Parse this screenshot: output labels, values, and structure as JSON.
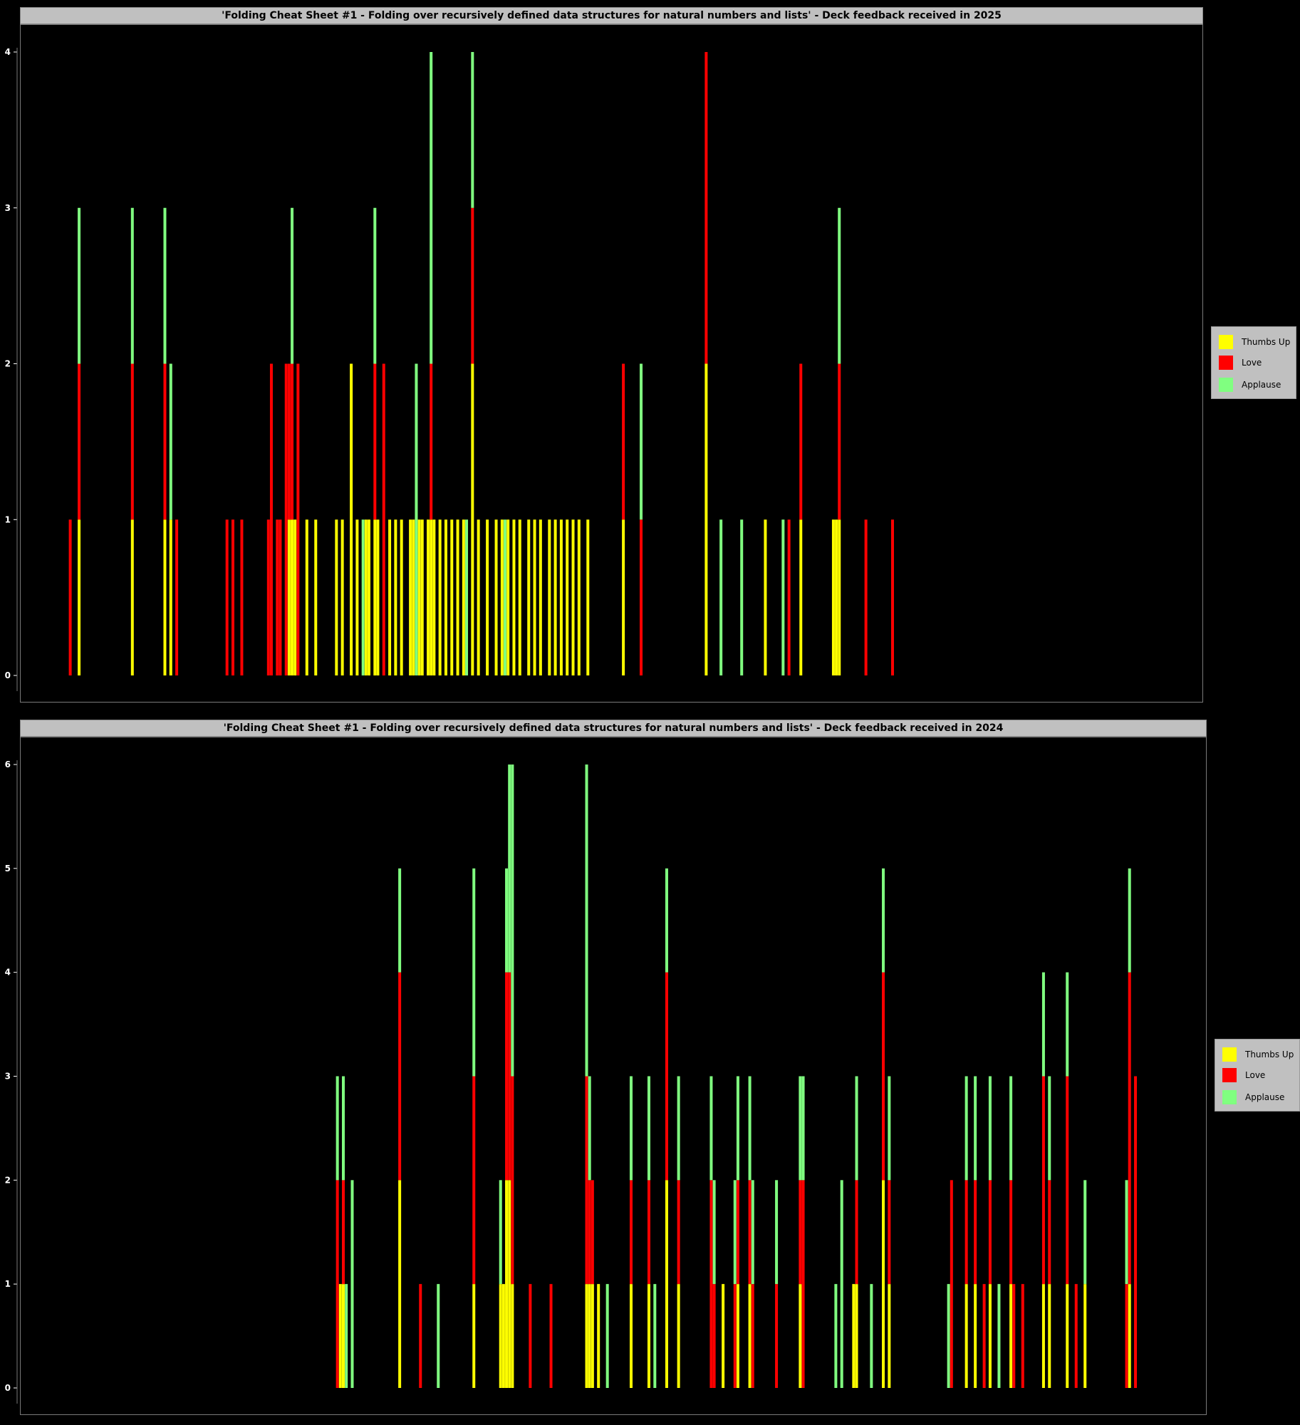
{
  "colors": {
    "thumbs_up": "#ffff00",
    "love": "#ff0000",
    "applause": "#80ff80",
    "background": "#000000",
    "panel_bg": "#c0c0c0"
  },
  "legend": {
    "items": [
      "Thumbs Up",
      "Love",
      "Applause"
    ]
  },
  "chart_data": [
    {
      "type": "bar",
      "stacked": true,
      "title": "'Folding Cheat Sheet #1 - Folding over recursively defined data structures for natural numbers and lists' - Deck feedback received in 2025",
      "xlabel": "",
      "ylabel": "",
      "ylim": [
        0,
        4
      ],
      "yticks": [
        0,
        1,
        2,
        3,
        4
      ],
      "x_count": 400,
      "legend_position": "right",
      "series_names": [
        "Thumbs Up",
        "Love",
        "Applause"
      ],
      "bars": [
        {
          "x": 17,
          "tu": 0,
          "love": 1,
          "app": 0
        },
        {
          "x": 20,
          "tu": 1,
          "love": 1,
          "app": 1
        },
        {
          "x": 38,
          "tu": 1,
          "love": 1,
          "app": 1
        },
        {
          "x": 49,
          "tu": 1,
          "love": 1,
          "app": 1
        },
        {
          "x": 51,
          "tu": 1,
          "love": 0,
          "app": 1
        },
        {
          "x": 53,
          "tu": 0,
          "love": 1,
          "app": 0
        },
        {
          "x": 70,
          "tu": 0,
          "love": 1,
          "app": 0
        },
        {
          "x": 72,
          "tu": 0,
          "love": 1,
          "app": 0
        },
        {
          "x": 75,
          "tu": 0,
          "love": 1,
          "app": 0
        },
        {
          "x": 84,
          "tu": 0,
          "love": 1,
          "app": 0
        },
        {
          "x": 85,
          "tu": 0,
          "love": 2,
          "app": 0
        },
        {
          "x": 87,
          "tu": 0,
          "love": 1,
          "app": 0
        },
        {
          "x": 88,
          "tu": 0,
          "love": 1,
          "app": 0
        },
        {
          "x": 90,
          "tu": 0,
          "love": 2,
          "app": 0
        },
        {
          "x": 91,
          "tu": 1,
          "love": 1,
          "app": 0
        },
        {
          "x": 92,
          "tu": 1,
          "love": 1,
          "app": 1
        },
        {
          "x": 93,
          "tu": 1,
          "love": 0,
          "app": 0
        },
        {
          "x": 94,
          "tu": 0,
          "love": 2,
          "app": 0
        },
        {
          "x": 97,
          "tu": 1,
          "love": 0,
          "app": 0
        },
        {
          "x": 100,
          "tu": 1,
          "love": 0,
          "app": 0
        },
        {
          "x": 107,
          "tu": 1,
          "love": 0,
          "app": 0
        },
        {
          "x": 109,
          "tu": 1,
          "love": 0,
          "app": 0
        },
        {
          "x": 112,
          "tu": 2,
          "love": 0,
          "app": 0
        },
        {
          "x": 114,
          "tu": 1,
          "love": 0,
          "app": 0
        },
        {
          "x": 116,
          "tu": 0,
          "love": 0,
          "app": 1
        },
        {
          "x": 117,
          "tu": 1,
          "love": 0,
          "app": 0
        },
        {
          "x": 118,
          "tu": 1,
          "love": 0,
          "app": 0
        },
        {
          "x": 120,
          "tu": 1,
          "love": 1,
          "app": 1
        },
        {
          "x": 121,
          "tu": 1,
          "love": 0,
          "app": 0
        },
        {
          "x": 123,
          "tu": 0,
          "love": 2,
          "app": 0
        },
        {
          "x": 125,
          "tu": 1,
          "love": 0,
          "app": 0
        },
        {
          "x": 127,
          "tu": 1,
          "love": 0,
          "app": 0
        },
        {
          "x": 129,
          "tu": 1,
          "love": 0,
          "app": 0
        },
        {
          "x": 132,
          "tu": 1,
          "love": 0,
          "app": 0
        },
        {
          "x": 133,
          "tu": 1,
          "love": 0,
          "app": 0
        },
        {
          "x": 134,
          "tu": 0,
          "love": 0,
          "app": 2
        },
        {
          "x": 135,
          "tu": 1,
          "love": 0,
          "app": 0
        },
        {
          "x": 136,
          "tu": 1,
          "love": 0,
          "app": 0
        },
        {
          "x": 138,
          "tu": 1,
          "love": 0,
          "app": 0
        },
        {
          "x": 139,
          "tu": 1,
          "love": 1,
          "app": 2
        },
        {
          "x": 140,
          "tu": 1,
          "love": 0,
          "app": 0
        },
        {
          "x": 142,
          "tu": 1,
          "love": 0,
          "app": 0
        },
        {
          "x": 144,
          "tu": 1,
          "love": 0,
          "app": 0
        },
        {
          "x": 146,
          "tu": 1,
          "love": 0,
          "app": 0
        },
        {
          "x": 148,
          "tu": 1,
          "love": 0,
          "app": 0
        },
        {
          "x": 150,
          "tu": 1,
          "love": 0,
          "app": 0
        },
        {
          "x": 151,
          "tu": 0,
          "love": 0,
          "app": 1
        },
        {
          "x": 153,
          "tu": 2,
          "love": 1,
          "app": 1
        },
        {
          "x": 155,
          "tu": 1,
          "love": 0,
          "app": 0
        },
        {
          "x": 158,
          "tu": 1,
          "love": 0,
          "app": 0
        },
        {
          "x": 161,
          "tu": 1,
          "love": 0,
          "app": 0
        },
        {
          "x": 163,
          "tu": 1,
          "love": 0,
          "app": 0
        },
        {
          "x": 164,
          "tu": 0,
          "love": 0,
          "app": 1
        },
        {
          "x": 165,
          "tu": 1,
          "love": 0,
          "app": 0
        },
        {
          "x": 167,
          "tu": 1,
          "love": 0,
          "app": 0
        },
        {
          "x": 169,
          "tu": 1,
          "love": 0,
          "app": 0
        },
        {
          "x": 172,
          "tu": 1,
          "love": 0,
          "app": 0
        },
        {
          "x": 174,
          "tu": 1,
          "love": 0,
          "app": 0
        },
        {
          "x": 176,
          "tu": 1,
          "love": 0,
          "app": 0
        },
        {
          "x": 179,
          "tu": 1,
          "love": 0,
          "app": 0
        },
        {
          "x": 181,
          "tu": 1,
          "love": 0,
          "app": 0
        },
        {
          "x": 183,
          "tu": 1,
          "love": 0,
          "app": 0
        },
        {
          "x": 185,
          "tu": 1,
          "love": 0,
          "app": 0
        },
        {
          "x": 187,
          "tu": 1,
          "love": 0,
          "app": 0
        },
        {
          "x": 189,
          "tu": 1,
          "love": 0,
          "app": 0
        },
        {
          "x": 192,
          "tu": 1,
          "love": 0,
          "app": 0
        },
        {
          "x": 204,
          "tu": 1,
          "love": 1,
          "app": 0
        },
        {
          "x": 210,
          "tu": 0,
          "love": 1,
          "app": 1
        },
        {
          "x": 232,
          "tu": 2,
          "love": 2,
          "app": 0
        },
        {
          "x": 237,
          "tu": 0,
          "love": 0,
          "app": 1
        },
        {
          "x": 244,
          "tu": 0,
          "love": 0,
          "app": 1
        },
        {
          "x": 252,
          "tu": 1,
          "love": 0,
          "app": 0
        },
        {
          "x": 258,
          "tu": 0,
          "love": 0,
          "app": 1
        },
        {
          "x": 260,
          "tu": 0,
          "love": 1,
          "app": 0
        },
        {
          "x": 264,
          "tu": 1,
          "love": 1,
          "app": 0
        },
        {
          "x": 275,
          "tu": 1,
          "love": 0,
          "app": 0
        },
        {
          "x": 276,
          "tu": 1,
          "love": 0,
          "app": 0
        },
        {
          "x": 277,
          "tu": 1,
          "love": 1,
          "app": 1
        },
        {
          "x": 286,
          "tu": 0,
          "love": 1,
          "app": 0
        },
        {
          "x": 295,
          "tu": 0,
          "love": 1,
          "app": 0
        }
      ]
    },
    {
      "type": "bar",
      "stacked": true,
      "title": "'Folding Cheat Sheet #1 - Folding over recursively defined data structures for natural numbers and lists' - Deck feedback received in 2024",
      "xlabel": "",
      "ylabel": "",
      "ylim": [
        0,
        6
      ],
      "yticks": [
        0,
        1,
        2,
        3,
        4,
        5,
        6
      ],
      "x_count": 400,
      "legend_position": "right",
      "series_names": [
        "Thumbs Up",
        "Love",
        "Applause"
      ],
      "bars": [
        {
          "x": 107,
          "tu": 0,
          "love": 2,
          "app": 1
        },
        {
          "x": 108,
          "tu": 1,
          "love": 0,
          "app": 0
        },
        {
          "x": 109,
          "tu": 1,
          "love": 1,
          "app": 1
        },
        {
          "x": 110,
          "tu": 0,
          "love": 0,
          "app": 1
        },
        {
          "x": 112,
          "tu": 0,
          "love": 0,
          "app": 2
        },
        {
          "x": 128,
          "tu": 2,
          "love": 2,
          "app": 1
        },
        {
          "x": 135,
          "tu": 0,
          "love": 1,
          "app": 0
        },
        {
          "x": 141,
          "tu": 0,
          "love": 0,
          "app": 1
        },
        {
          "x": 153,
          "tu": 1,
          "love": 2,
          "app": 2
        },
        {
          "x": 162,
          "tu": 1,
          "love": 0,
          "app": 1
        },
        {
          "x": 163,
          "tu": 1,
          "love": 0,
          "app": 0
        },
        {
          "x": 164,
          "tu": 2,
          "love": 2,
          "app": 1
        },
        {
          "x": 165,
          "tu": 2,
          "love": 2,
          "app": 2
        },
        {
          "x": 166,
          "tu": 1,
          "love": 2,
          "app": 3
        },
        {
          "x": 172,
          "tu": 0,
          "love": 1,
          "app": 0
        },
        {
          "x": 179,
          "tu": 0,
          "love": 1,
          "app": 0
        },
        {
          "x": 191,
          "tu": 1,
          "love": 2,
          "app": 3
        },
        {
          "x": 192,
          "tu": 1,
          "love": 1,
          "app": 1
        },
        {
          "x": 193,
          "tu": 1,
          "love": 1,
          "app": 0
        },
        {
          "x": 195,
          "tu": 1,
          "love": 0,
          "app": 0
        },
        {
          "x": 198,
          "tu": 0,
          "love": 0,
          "app": 1
        },
        {
          "x": 206,
          "tu": 1,
          "love": 1,
          "app": 1
        },
        {
          "x": 212,
          "tu": 1,
          "love": 1,
          "app": 1
        },
        {
          "x": 214,
          "tu": 0,
          "love": 0,
          "app": 1
        },
        {
          "x": 218,
          "tu": 2,
          "love": 2,
          "app": 1
        },
        {
          "x": 222,
          "tu": 1,
          "love": 1,
          "app": 1
        },
        {
          "x": 233,
          "tu": 0,
          "love": 2,
          "app": 1
        },
        {
          "x": 234,
          "tu": 0,
          "love": 1,
          "app": 1
        },
        {
          "x": 237,
          "tu": 1,
          "love": 0,
          "app": 0
        },
        {
          "x": 241,
          "tu": 0,
          "love": 1,
          "app": 1
        },
        {
          "x": 242,
          "tu": 1,
          "love": 1,
          "app": 1
        },
        {
          "x": 246,
          "tu": 1,
          "love": 1,
          "app": 1
        },
        {
          "x": 247,
          "tu": 0,
          "love": 1,
          "app": 1
        },
        {
          "x": 255,
          "tu": 0,
          "love": 1,
          "app": 1
        },
        {
          "x": 263,
          "tu": 1,
          "love": 1,
          "app": 1
        },
        {
          "x": 264,
          "tu": 0,
          "love": 2,
          "app": 1
        },
        {
          "x": 275,
          "tu": 0,
          "love": 0,
          "app": 1
        },
        {
          "x": 277,
          "tu": 0,
          "love": 0,
          "app": 2
        },
        {
          "x": 281,
          "tu": 1,
          "love": 0,
          "app": 0
        },
        {
          "x": 282,
          "tu": 1,
          "love": 1,
          "app": 1
        },
        {
          "x": 287,
          "tu": 0,
          "love": 0,
          "app": 1
        },
        {
          "x": 291,
          "tu": 2,
          "love": 2,
          "app": 1
        },
        {
          "x": 293,
          "tu": 1,
          "love": 1,
          "app": 1
        },
        {
          "x": 313,
          "tu": 0,
          "love": 0,
          "app": 1
        },
        {
          "x": 314,
          "tu": 0,
          "love": 2,
          "app": 0
        },
        {
          "x": 319,
          "tu": 1,
          "love": 1,
          "app": 1
        },
        {
          "x": 322,
          "tu": 1,
          "love": 1,
          "app": 1
        },
        {
          "x": 325,
          "tu": 0,
          "love": 1,
          "app": 0
        },
        {
          "x": 327,
          "tu": 1,
          "love": 1,
          "app": 1
        },
        {
          "x": 330,
          "tu": 0,
          "love": 0,
          "app": 1
        },
        {
          "x": 334,
          "tu": 1,
          "love": 1,
          "app": 1
        },
        {
          "x": 335,
          "tu": 0,
          "love": 1,
          "app": 0
        },
        {
          "x": 338,
          "tu": 0,
          "love": 1,
          "app": 0
        },
        {
          "x": 345,
          "tu": 1,
          "love": 2,
          "app": 1
        },
        {
          "x": 347,
          "tu": 1,
          "love": 1,
          "app": 1
        },
        {
          "x": 353,
          "tu": 1,
          "love": 2,
          "app": 1
        },
        {
          "x": 356,
          "tu": 0,
          "love": 1,
          "app": 0
        },
        {
          "x": 359,
          "tu": 1,
          "love": 0,
          "app": 1
        },
        {
          "x": 373,
          "tu": 0,
          "love": 1,
          "app": 1
        },
        {
          "x": 374,
          "tu": 1,
          "love": 3,
          "app": 1
        },
        {
          "x": 376,
          "tu": 0,
          "love": 3,
          "app": 0
        }
      ]
    }
  ]
}
